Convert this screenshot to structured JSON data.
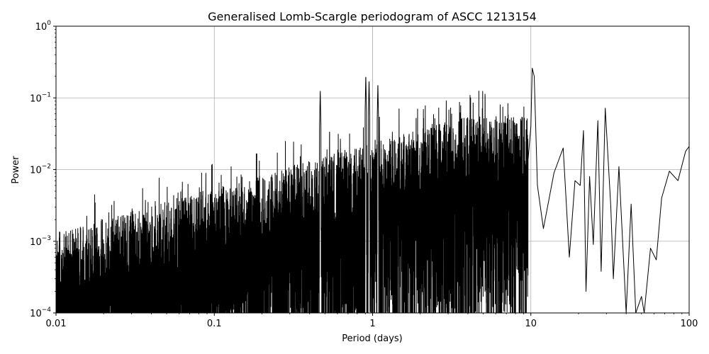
{
  "chart_data": {
    "type": "line",
    "title": "Generalised Lomb-Scargle periodogram of ASCC 1213154",
    "xlabel": "Period (days)",
    "ylabel": "Power",
    "xscale": "log",
    "yscale": "log",
    "xlim": [
      0.01,
      100
    ],
    "ylim": [
      0.0001,
      1
    ],
    "grid": true,
    "line_color": "#000000",
    "x_ticks": [
      {
        "value": 0.01,
        "label": "0.01"
      },
      {
        "value": 0.1,
        "label": "0.1"
      },
      {
        "value": 1,
        "label": "1"
      },
      {
        "value": 10,
        "label": "10"
      },
      {
        "value": 100,
        "label": "100"
      }
    ],
    "y_ticks": [
      {
        "value": 0.0001,
        "base": "10",
        "exp": "−4"
      },
      {
        "value": 0.001,
        "base": "10",
        "exp": "−3"
      },
      {
        "value": 0.01,
        "base": "10",
        "exp": "−2"
      },
      {
        "value": 0.1,
        "base": "10",
        "exp": "−1"
      },
      {
        "value": 1,
        "base": "10",
        "exp": "0"
      }
    ],
    "peaks": [
      {
        "period": 0.467,
        "power": 0.13
      },
      {
        "period": 0.906,
        "power": 0.21
      },
      {
        "period": 0.95,
        "power": 0.18
      },
      {
        "period": 1.08,
        "power": 0.16
      },
      {
        "period": 9.85,
        "power": 0.16
      },
      {
        "period": 10.2,
        "power": 0.26
      },
      {
        "period": 10.5,
        "power": 0.2
      },
      {
        "period": 21.5,
        "power": 0.035
      },
      {
        "period": 26.5,
        "power": 0.048
      },
      {
        "period": 29.5,
        "power": 0.072
      },
      {
        "period": 36.0,
        "power": 0.011
      }
    ],
    "long_period_envelope": [
      {
        "period": 10.0,
        "power": 0.04
      },
      {
        "period": 10.2,
        "power": 0.26
      },
      {
        "period": 10.5,
        "power": 0.2
      },
      {
        "period": 11.0,
        "power": 0.006
      },
      {
        "period": 12.0,
        "power": 0.0015
      },
      {
        "period": 14.0,
        "power": 0.009
      },
      {
        "period": 16.0,
        "power": 0.02
      },
      {
        "period": 17.5,
        "power": 0.0006
      },
      {
        "period": 19.0,
        "power": 0.007
      },
      {
        "period": 20.5,
        "power": 0.006
      },
      {
        "period": 21.5,
        "power": 0.035
      },
      {
        "period": 22.3,
        "power": 0.0002
      },
      {
        "period": 23.5,
        "power": 0.008
      },
      {
        "period": 24.8,
        "power": 0.0009
      },
      {
        "period": 26.5,
        "power": 0.048
      },
      {
        "period": 27.8,
        "power": 0.00038
      },
      {
        "period": 29.5,
        "power": 0.072
      },
      {
        "period": 32.0,
        "power": 0.003
      },
      {
        "period": 33.2,
        "power": 0.0003
      },
      {
        "period": 36.0,
        "power": 0.011
      },
      {
        "period": 40.0,
        "power": 0.0001
      },
      {
        "period": 43.0,
        "power": 0.0033
      },
      {
        "period": 46.0,
        "power": 0.0001
      },
      {
        "period": 50.0,
        "power": 0.00017
      },
      {
        "period": 52.0,
        "power": 0.0001
      },
      {
        "period": 57.0,
        "power": 0.0008
      },
      {
        "period": 62.0,
        "power": 0.00055
      },
      {
        "period": 67.0,
        "power": 0.004
      },
      {
        "period": 75.0,
        "power": 0.0095
      },
      {
        "period": 85.0,
        "power": 0.007
      },
      {
        "period": 95.0,
        "power": 0.018
      },
      {
        "period": 100.0,
        "power": 0.021
      }
    ]
  }
}
